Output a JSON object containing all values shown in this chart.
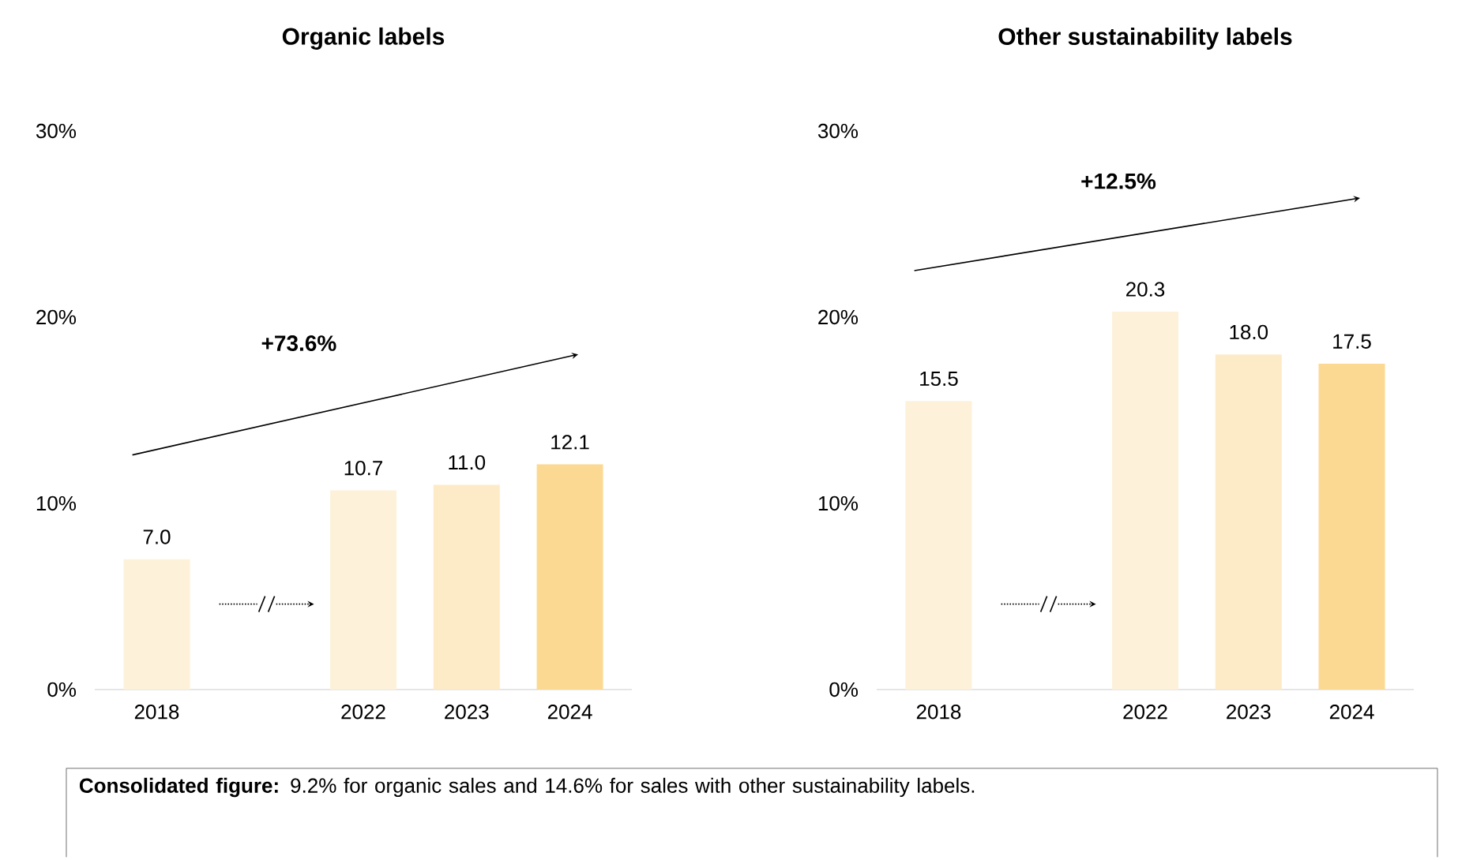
{
  "chart_data": [
    {
      "type": "bar",
      "title": "Organic labels",
      "categories": [
        "2018",
        null,
        "2022",
        "2023",
        "2024"
      ],
      "values": [
        7.0,
        null,
        10.7,
        11.0,
        12.1
      ],
      "value_labels": [
        "7.0",
        null,
        "10.7",
        "11.0",
        "12.1"
      ],
      "colors": [
        "#fdf1da",
        null,
        "#fdf1da",
        "#fdebc8",
        "#fcd993"
      ],
      "ylim": [
        0,
        30
      ],
      "yticks": [
        {
          "value": 0,
          "label": "0%"
        },
        {
          "value": 10,
          "label": "10%"
        },
        {
          "value": 20,
          "label": "20%"
        },
        {
          "value": 30,
          "label": "30%"
        }
      ],
      "annotations": [
        "+73.6%",
        "**Consolidated figure:** 9.2% for organic sales and 14.6% for sales with other sustainability labels."
      ]
    },
    {
      "type": "bar",
      "title": "Other sustainability labels",
      "categories": [
        "2018",
        null,
        "2022",
        "2023",
        "2024"
      ],
      "values": [
        15.5,
        null,
        20.3,
        18.0,
        17.5
      ],
      "value_labels": [
        "15.5",
        null,
        "20.3",
        "18.0",
        "17.5"
      ],
      "colors": [
        "#fdf1da",
        null,
        "#fdf1da",
        "#fdebc8",
        "#fcd993"
      ],
      "ylim": [
        0,
        30
      ],
      "yticks": [
        {
          "value": 0,
          "label": "0%"
        },
        {
          "value": 10,
          "label": "10%"
        },
        {
          "value": 20,
          "label": "20%"
        },
        {
          "value": 30,
          "label": "30%"
        }
      ],
      "annotations": [
        "+12.5%"
      ]
    }
  ]
}
